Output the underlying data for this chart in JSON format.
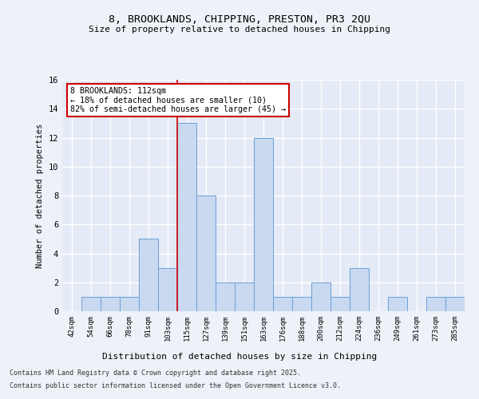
{
  "title1": "8, BROOKLANDS, CHIPPING, PRESTON, PR3 2QU",
  "title2": "Size of property relative to detached houses in Chipping",
  "xlabel": "Distribution of detached houses by size in Chipping",
  "ylabel": "Number of detached properties",
  "categories": [
    "42sqm",
    "54sqm",
    "66sqm",
    "78sqm",
    "91sqm",
    "103sqm",
    "115sqm",
    "127sqm",
    "139sqm",
    "151sqm",
    "163sqm",
    "176sqm",
    "188sqm",
    "200sqm",
    "212sqm",
    "224sqm",
    "236sqm",
    "249sqm",
    "261sqm",
    "273sqm",
    "285sqm"
  ],
  "values": [
    0,
    1,
    1,
    1,
    5,
    3,
    13,
    8,
    2,
    2,
    12,
    1,
    1,
    2,
    1,
    3,
    0,
    1,
    0,
    1,
    1
  ],
  "bar_color": "#c9d9f0",
  "bar_edge_color": "#6a9fd8",
  "highlight_index": 6,
  "highlight_line_color": "#cc0000",
  "annotation_text": "8 BROOKLANDS: 112sqm\n← 18% of detached houses are smaller (10)\n82% of semi-detached houses are larger (45) →",
  "annotation_box_color": "#ffffff",
  "annotation_box_edge": "#cc0000",
  "ylim": [
    0,
    16
  ],
  "yticks": [
    0,
    2,
    4,
    6,
    8,
    10,
    12,
    14,
    16
  ],
  "footer1": "Contains HM Land Registry data © Crown copyright and database right 2025.",
  "footer2": "Contains public sector information licensed under the Open Government Licence v3.0.",
  "background_color": "#eef2f8",
  "plot_bg_color": "#e4eaf6"
}
